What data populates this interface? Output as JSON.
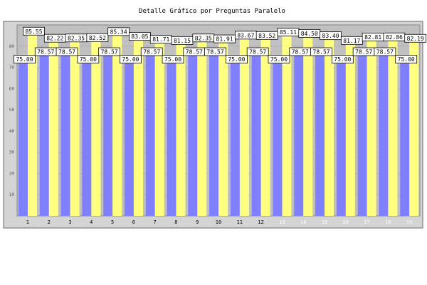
{
  "chart_data": {
    "type": "bar",
    "title": "Detalle Gráfico por Preguntas Paralelo",
    "xlabel": "",
    "ylabel": "",
    "categories": [
      "1",
      "2",
      "3",
      "4",
      "5",
      "6",
      "7",
      "8",
      "9",
      "10",
      "11",
      "12",
      "13",
      "14",
      "15",
      "16",
      "17",
      "18",
      "19"
    ],
    "series": [
      {
        "values": [
          75.0,
          78.57,
          78.57,
          75.0,
          78.57,
          75.0,
          78.57,
          75.0,
          78.57,
          78.57,
          75.0,
          78.57,
          75.0,
          78.57,
          78.57,
          75.0,
          78.57,
          78.57,
          75.0
        ]
      },
      {
        "values": [
          85.55,
          82.22,
          82.35,
          82.52,
          85.34,
          83.05,
          81.71,
          81.15,
          82.35,
          81.91,
          83.67,
          83.52,
          85.11,
          84.5,
          83.4,
          81.17,
          82.81,
          82.86,
          82.19
        ]
      }
    ],
    "ylim": [
      0,
      90
    ],
    "yticks": [
      10,
      20,
      30,
      40,
      50,
      60,
      70,
      80
    ],
    "grid": true,
    "legend": "none",
    "colors": {
      "series_0": "#8080ff",
      "series_1": "#ffff80",
      "plot_background": "#c0c0c0",
      "frame_background": "#d4d4d4",
      "tick_label": "#000000",
      "tick_label_faded": "#ffffff",
      "value_label_background": "#ffffff"
    }
  }
}
